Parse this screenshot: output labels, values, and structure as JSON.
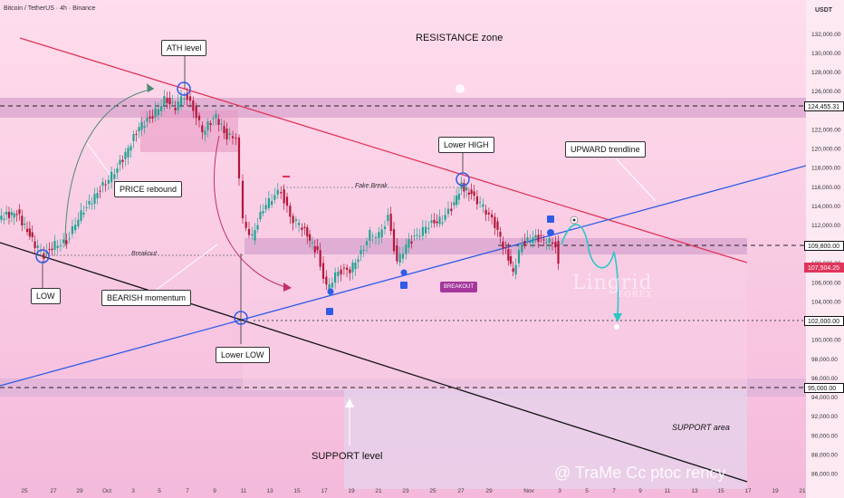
{
  "header": {
    "title": "Bitcoin / TetherUS · 4h · Binance",
    "currency": "USDT"
  },
  "chart_data": {
    "type": "candlestick",
    "y_ticks": [
      "132,000.00",
      "130,000.00",
      "128,000.00",
      "126,000.00",
      "122,000.00",
      "120,000.00",
      "118,000.00",
      "116,000.00",
      "114,000.00",
      "112,000.00",
      "108,000.00",
      "106,000.00",
      "104,000.00",
      "100,000.00",
      "98,000.00",
      "96,000.00",
      "94,000.00",
      "92,000.00",
      "90,000.00",
      "88,000.00",
      "86,000.00"
    ],
    "x_ticks": [
      "25",
      "27",
      "29",
      "Oct",
      "3",
      "5",
      "7",
      "9",
      "11",
      "13",
      "15",
      "17",
      "19",
      "21",
      "23",
      "25",
      "27",
      "29",
      "Nov",
      "3",
      "5",
      "7",
      "9",
      "11",
      "13",
      "15",
      "17",
      "19",
      "21"
    ],
    "ylim": [
      85000,
      134000
    ],
    "price_tags": [
      {
        "label": "124,455.31",
        "value": 124455.31,
        "style": "white"
      },
      {
        "label": "109,800.00",
        "value": 109800,
        "style": "white"
      },
      {
        "label": "107,504.25",
        "value": 107504.25,
        "style": "red"
      },
      {
        "label": "102,000.00",
        "value": 102000,
        "style": "white"
      },
      {
        "label": "95,000.00",
        "value": 95000,
        "style": "white"
      }
    ],
    "annotations": {
      "resistance_zone": "RESISTANCE zone",
      "ath_level": "ATH level",
      "price_rebound": "PRICE rebound",
      "low": "LOW",
      "bearish_momentum": "BEARISH momentum",
      "lower_low": "Lower LOW",
      "lower_high": "Lower HIGH",
      "upward_trendline": "UPWARD trendline",
      "fake_break": "Fake Break",
      "breakout_line": "Breakout",
      "breakout_badge": "BREAKOUT",
      "support_level": "SUPPORT level",
      "support_area": "SUPPORT area"
    },
    "colors": {
      "up": "#22a393",
      "down": "#b5163a",
      "resistance_line": "#e0345a",
      "trendline": "#2f5be6",
      "support_line": "#111111"
    }
  },
  "watermark": {
    "brand": "Lingrid",
    "sub": "FOREX"
  },
  "footer": {
    "text": "@ TraMe Cc ptoc rency"
  }
}
